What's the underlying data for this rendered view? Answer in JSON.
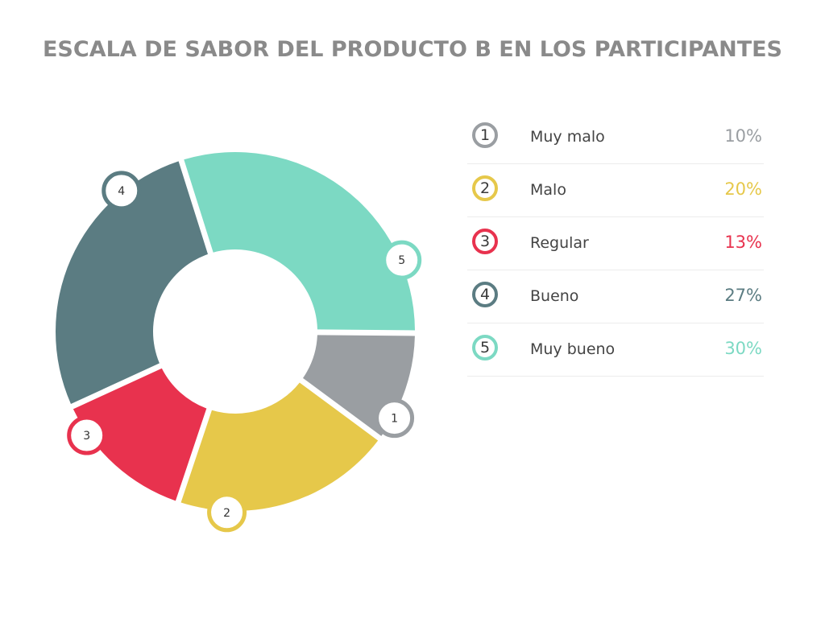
{
  "chart_data": {
    "type": "pie",
    "title": "ESCALA DE SABOR DEL PRODUCTO B EN LOS PARTICIPANTES",
    "categories": [
      "1",
      "2",
      "3",
      "4",
      "5"
    ],
    "labels": [
      "Muy malo",
      "Malo",
      "Regular",
      "Bueno",
      "Muy bueno"
    ],
    "values": [
      10,
      20,
      13,
      27,
      30
    ],
    "value_labels": [
      "10%",
      "20%",
      "13%",
      "27%",
      "30%"
    ],
    "unit": "%",
    "colors": [
      "#9a9ea2",
      "#e6c84a",
      "#e8324e",
      "#5b7c82",
      "#7cd9c3"
    ],
    "legend_position": "right"
  }
}
